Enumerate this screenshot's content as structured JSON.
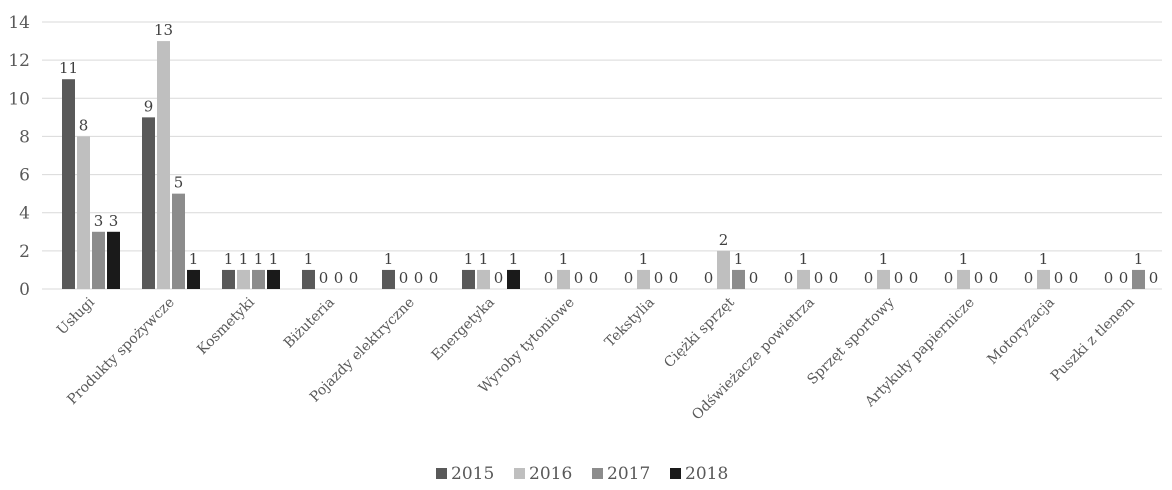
{
  "chart_data": {
    "type": "bar",
    "title": "",
    "xlabel": "",
    "ylabel": "",
    "ylim": [
      0,
      14
    ],
    "yticks": [
      0,
      2,
      4,
      6,
      8,
      10,
      12,
      14
    ],
    "grid": true,
    "legend_position": "bottom",
    "categories": [
      "Usługi",
      "Produkty spożywcze",
      "Kosmetyki",
      "Biżuteria",
      "Pojazdy elektryczne",
      "Energetyka",
      "Wyroby tytoniowe",
      "Tekstylia",
      "Ciężki sprzęt",
      "Odświeżacze powietrza",
      "Sprzęt sportowy",
      "Artykuły papiernicze",
      "Motoryzacja",
      "Puszki z tlenem"
    ],
    "series": [
      {
        "name": "2015",
        "color": "#595959",
        "values": [
          11,
          9,
          1,
          1,
          1,
          1,
          0,
          0,
          0,
          0,
          0,
          0,
          0,
          0
        ]
      },
      {
        "name": "2016",
        "color": "#bfbfbf",
        "values": [
          8,
          13,
          1,
          0,
          0,
          1,
          1,
          1,
          2,
          1,
          1,
          1,
          1,
          0
        ]
      },
      {
        "name": "2017",
        "color": "#8c8c8c",
        "values": [
          3,
          5,
          1,
          0,
          0,
          0,
          0,
          0,
          1,
          0,
          0,
          0,
          0,
          1
        ]
      },
      {
        "name": "2018",
        "color": "#1a1a1a",
        "values": [
          3,
          1,
          1,
          0,
          0,
          1,
          0,
          0,
          0,
          0,
          0,
          0,
          0,
          0
        ]
      }
    ]
  }
}
